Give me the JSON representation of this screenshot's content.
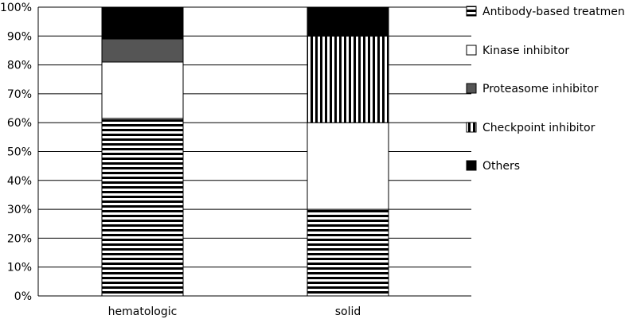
{
  "chart_data": {
    "type": "bar",
    "stacked": true,
    "categories": [
      "hematologic",
      "solid"
    ],
    "series": [
      {
        "name": "Antibody-based treatment",
        "values": [
          61.5,
          30
        ],
        "pattern": "horizontal-stripes"
      },
      {
        "name": "Kinase inhibitor",
        "values": [
          19.5,
          30
        ],
        "pattern": "white"
      },
      {
        "name": "Proteasome inhibitor",
        "values": [
          8,
          0
        ],
        "pattern": "dark-gray",
        "color": "#555555"
      },
      {
        "name": "Checkpoint inhibitor",
        "values": [
          0,
          30
        ],
        "pattern": "vertical-stripes"
      },
      {
        "name": "Others",
        "values": [
          11,
          10
        ],
        "pattern": "black",
        "color": "#000000"
      }
    ],
    "yticks": [
      "0%",
      "10%",
      "20%",
      "30%",
      "40%",
      "50%",
      "60%",
      "70%",
      "80%",
      "90%",
      "100%"
    ],
    "ylim": [
      0,
      100
    ],
    "grid": true,
    "legend_position": "right",
    "title": "",
    "xlabel": "",
    "ylabel": ""
  }
}
